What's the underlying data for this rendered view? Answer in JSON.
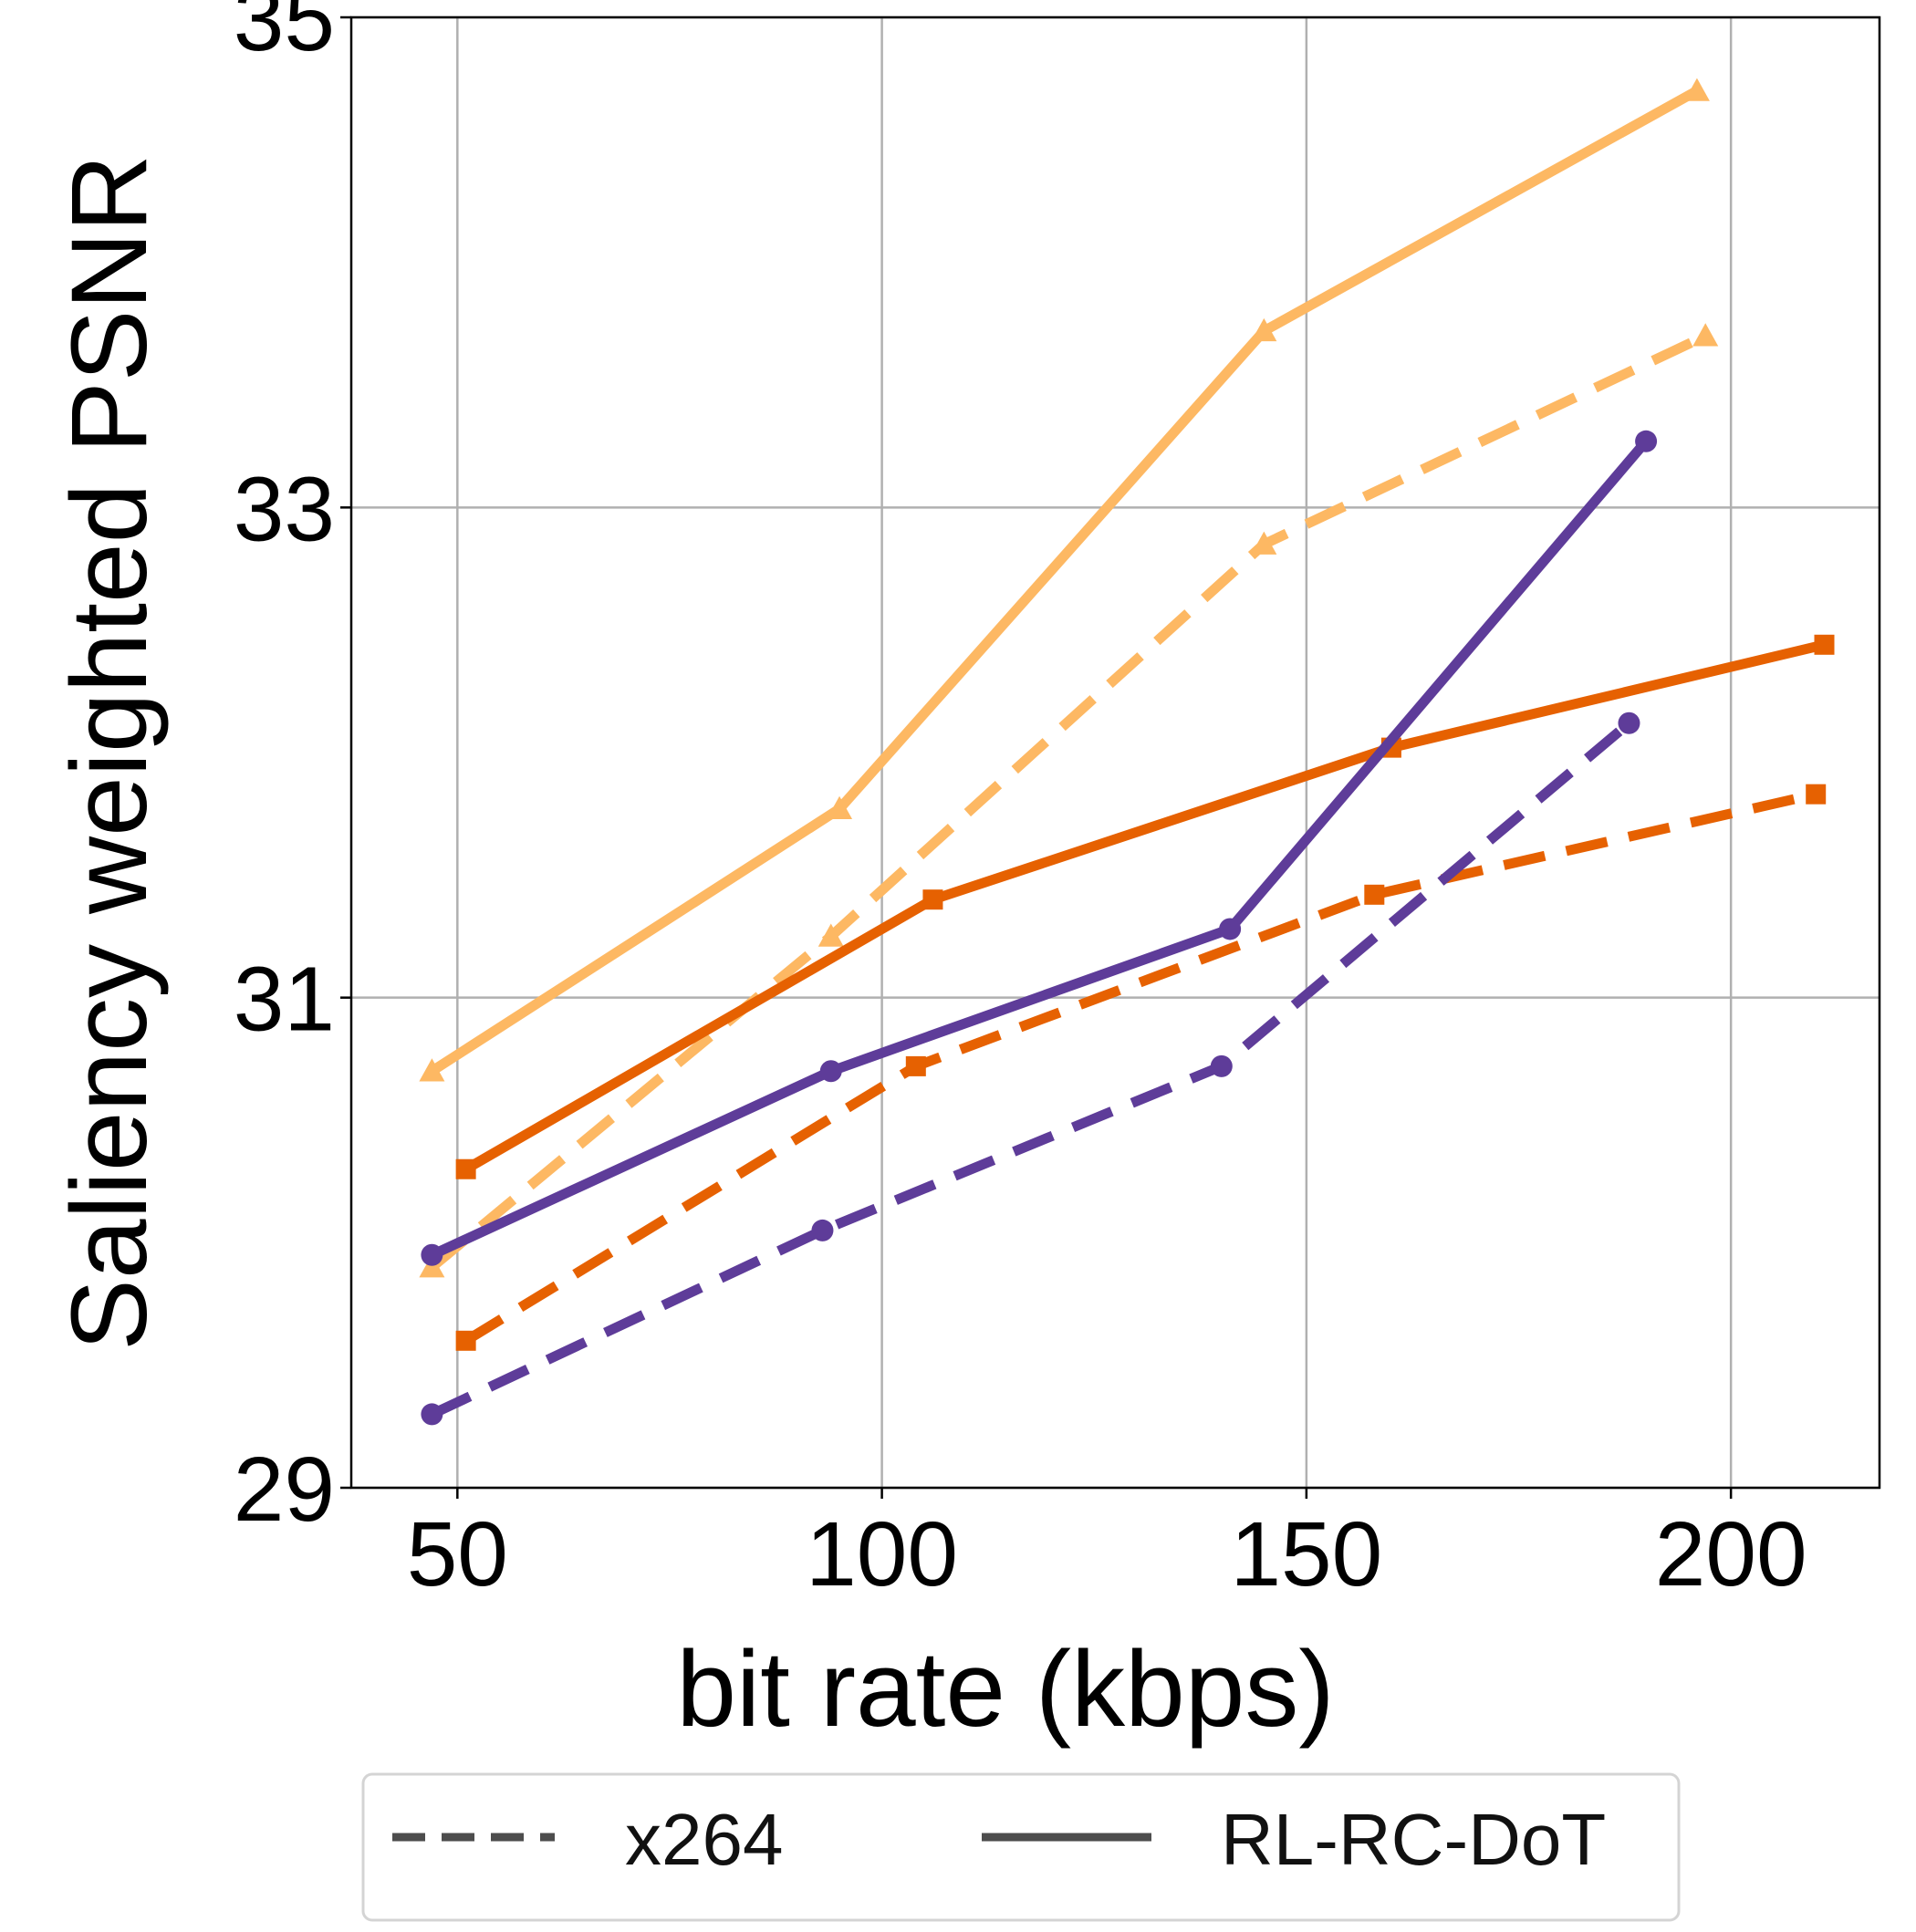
{
  "chart_data": {
    "type": "line",
    "title": "",
    "xlabel": "bit rate (kbps)",
    "ylabel": "Saliency weighted PSNR",
    "xlim": [
      37.5,
      217.5
    ],
    "ylim": [
      29,
      35
    ],
    "xticks": [
      50,
      100,
      150,
      200
    ],
    "yticks": [
      29,
      31,
      33,
      35
    ],
    "xtick_labels": [
      "50",
      "100",
      "150",
      "200"
    ],
    "ytick_labels": [
      "29",
      "31",
      "33",
      "35"
    ],
    "grid": true,
    "legend": {
      "placement": "bottom-center",
      "entries": [
        {
          "label": "x264",
          "style": "dashed",
          "color": "#4d4d4d"
        },
        {
          "label": "RL-RC-DoT",
          "style": "solid",
          "color": "#4d4d4d"
        }
      ]
    },
    "series": [
      {
        "name": "light-orange x264",
        "method": "x264",
        "style": "dashed",
        "color": "#fdb863",
        "marker": "triangle",
        "x": [
          47,
          94,
          145,
          197
        ],
        "y": [
          29.9,
          31.25,
          32.85,
          33.7
        ]
      },
      {
        "name": "light-orange RL-RC-DoT",
        "method": "RL-RC-DoT",
        "style": "solid",
        "color": "#fdb863",
        "marker": "triangle",
        "x": [
          47,
          95,
          145,
          196
        ],
        "y": [
          30.7,
          31.77,
          33.72,
          34.7
        ]
      },
      {
        "name": "orange x264",
        "method": "x264",
        "style": "dashed",
        "color": "#e66101",
        "marker": "square",
        "x": [
          51,
          104,
          158,
          210
        ],
        "y": [
          29.6,
          30.72,
          31.42,
          31.83
        ]
      },
      {
        "name": "orange RL-RC-DoT",
        "method": "RL-RC-DoT",
        "style": "solid",
        "color": "#e66101",
        "marker": "square",
        "x": [
          51,
          106,
          160,
          211
        ],
        "y": [
          30.3,
          31.4,
          32.02,
          32.44
        ]
      },
      {
        "name": "purple x264",
        "method": "x264",
        "style": "dashed",
        "color": "#5e3c99",
        "marker": "circle",
        "x": [
          47,
          93,
          140,
          188
        ],
        "y": [
          29.3,
          30.05,
          30.72,
          32.12
        ]
      },
      {
        "name": "purple RL-RC-DoT",
        "method": "RL-RC-DoT",
        "style": "solid",
        "color": "#5e3c99",
        "marker": "circle",
        "x": [
          47,
          94,
          141,
          190
        ],
        "y": [
          29.95,
          30.7,
          31.28,
          33.27
        ]
      }
    ]
  }
}
